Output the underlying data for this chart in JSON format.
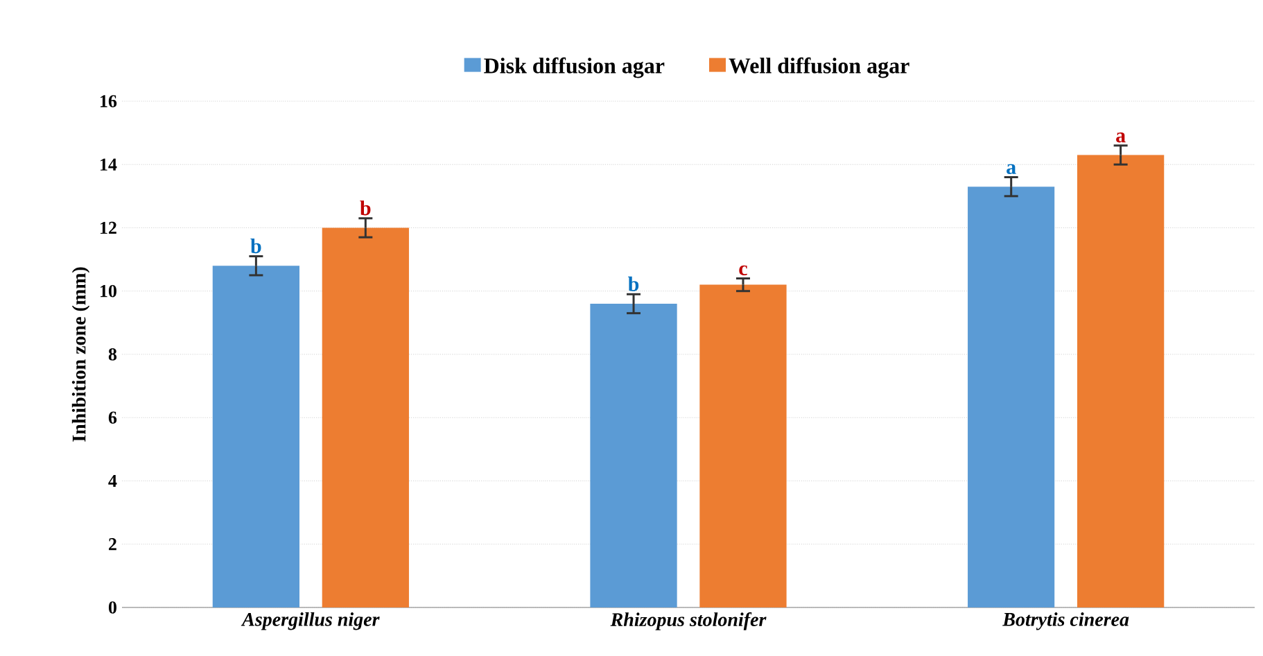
{
  "chart_data": {
    "type": "bar",
    "ylabel": "Inhibition  zone (mm)",
    "categories": [
      "Aspergillus niger",
      "Rhizopus stolonifer",
      "Botrytis cinerea"
    ],
    "series": [
      {
        "name": "Disk diffusion agar",
        "color": "#5b9bd5",
        "values": [
          10.8,
          9.6,
          13.3
        ],
        "errors": [
          0.3,
          0.3,
          0.3
        ],
        "value_labels": [
          "b",
          "b",
          "a"
        ]
      },
      {
        "name": "Well diffusion agar",
        "color": "#ed7d31",
        "values": [
          12.0,
          10.2,
          14.3
        ],
        "errors": [
          0.3,
          0.2,
          0.3
        ],
        "value_labels": [
          "b",
          "c",
          "a"
        ]
      }
    ],
    "ylim": [
      0,
      16
    ],
    "yticks": [
      0,
      2,
      4,
      6,
      8,
      10,
      12,
      14,
      16
    ],
    "grid": "y",
    "legend": "top"
  }
}
